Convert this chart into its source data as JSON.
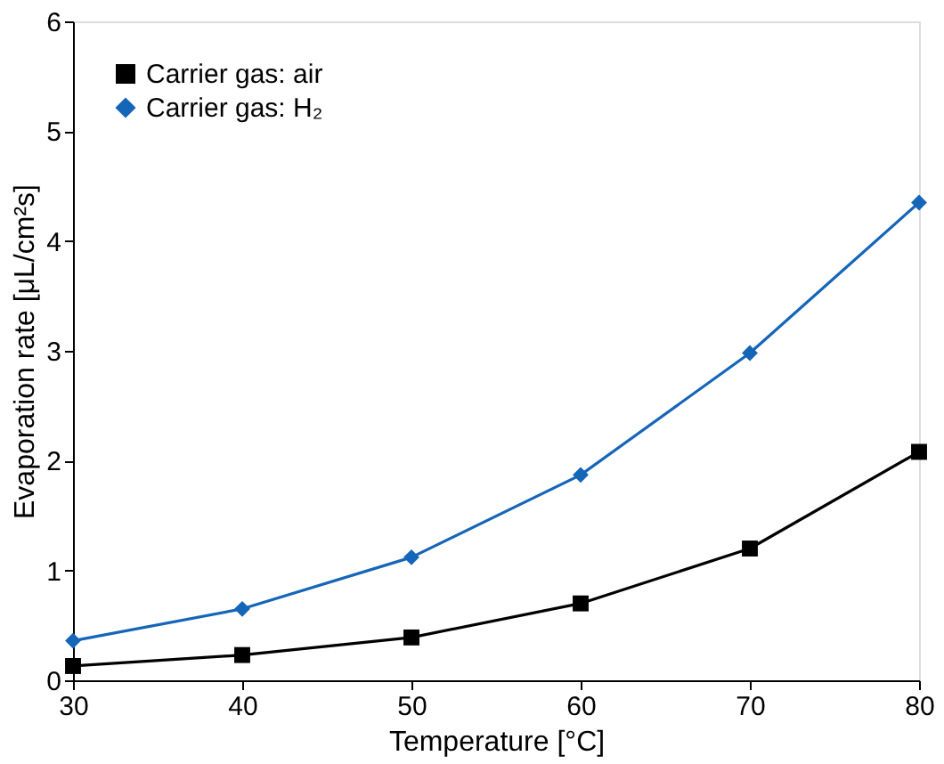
{
  "chart_data": {
    "type": "line",
    "xlabel": "Temperature [°C]",
    "ylabel": "Evaporation rate [μL/cm²s]",
    "x": [
      30,
      40,
      50,
      60,
      70,
      80
    ],
    "series": [
      {
        "name": "Carrier gas: air",
        "color": "#000000",
        "marker": "square",
        "values": [
          0.13,
          0.23,
          0.39,
          0.7,
          1.2,
          2.08
        ]
      },
      {
        "name": "Carrier gas: H₂",
        "color": "#1565b8",
        "marker": "diamond",
        "values": [
          0.36,
          0.65,
          1.12,
          1.87,
          2.98,
          4.35
        ]
      }
    ],
    "xlim": [
      30,
      80
    ],
    "xticks": [
      30,
      40,
      50,
      60,
      70,
      80
    ],
    "ylim": [
      0,
      6
    ],
    "yticks": [
      0,
      1,
      2,
      3,
      4,
      5,
      6
    ],
    "grid": false,
    "legend": "top left",
    "line_style": "solid"
  }
}
